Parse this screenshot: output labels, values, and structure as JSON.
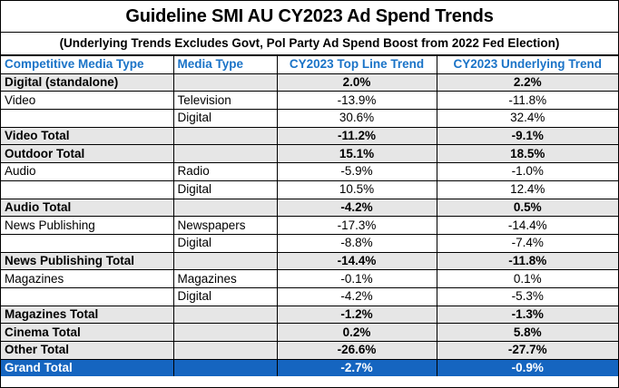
{
  "title": "Guideline SMI AU CY2023 Ad Spend Trends",
  "subtitle": "(Underlying Trends Excludes Govt, Pol Party Ad Spend Boost from 2022 Fed Election)",
  "headers": [
    "Competitive Media Type",
    "Media Type",
    "CY2023 Top Line Trend",
    "CY2023 Underlying Trend"
  ],
  "colors": {
    "header_text": "#1a73c7",
    "shaded_row": "#e6e6e6",
    "grand_total_bg": "#1565c0",
    "grand_total_text": "#ffffff"
  },
  "rows": [
    {
      "kind": "bold",
      "media_group": "Digital (standalone)",
      "media_type": "",
      "top_line": "2.0%",
      "underlying": "2.2%"
    },
    {
      "kind": "plain",
      "media_group": "Video",
      "media_type": "Television",
      "top_line": "-13.9%",
      "underlying": "-11.8%"
    },
    {
      "kind": "plain",
      "media_group": "",
      "media_type": "Digital",
      "top_line": "30.6%",
      "underlying": "32.4%"
    },
    {
      "kind": "total",
      "media_group": "Video Total",
      "media_type": "",
      "top_line": "-11.2%",
      "underlying": "-9.1%"
    },
    {
      "kind": "total",
      "media_group": "Outdoor Total",
      "media_type": "",
      "top_line": "15.1%",
      "underlying": "18.5%"
    },
    {
      "kind": "plain",
      "media_group": "Audio",
      "media_type": "Radio",
      "top_line": "-5.9%",
      "underlying": "-1.0%"
    },
    {
      "kind": "plain",
      "media_group": "",
      "media_type": "Digital",
      "top_line": "10.5%",
      "underlying": "12.4%"
    },
    {
      "kind": "total",
      "media_group": "Audio Total",
      "media_type": "",
      "top_line": "-4.2%",
      "underlying": "0.5%"
    },
    {
      "kind": "plain",
      "media_group": "News Publishing",
      "media_type": "Newspapers",
      "top_line": "-17.3%",
      "underlying": "-14.4%"
    },
    {
      "kind": "plain",
      "media_group": "",
      "media_type": "Digital",
      "top_line": "-8.8%",
      "underlying": "-7.4%"
    },
    {
      "kind": "total",
      "media_group": "News Publishing Total",
      "media_type": "",
      "top_line": "-14.4%",
      "underlying": "-11.8%"
    },
    {
      "kind": "plain",
      "media_group": "Magazines",
      "media_type": "Magazines",
      "top_line": "-0.1%",
      "underlying": "0.1%"
    },
    {
      "kind": "plain",
      "media_group": "",
      "media_type": "Digital",
      "top_line": "-4.2%",
      "underlying": "-5.3%"
    },
    {
      "kind": "total",
      "media_group": "Magazines Total",
      "media_type": "",
      "top_line": "-1.2%",
      "underlying": "-1.3%"
    },
    {
      "kind": "total",
      "media_group": "Cinema Total",
      "media_type": "",
      "top_line": "0.2%",
      "underlying": "5.8%"
    },
    {
      "kind": "total",
      "media_group": "Other Total",
      "media_type": "",
      "top_line": "-26.6%",
      "underlying": "-27.7%"
    },
    {
      "kind": "grand",
      "media_group": "Grand Total",
      "media_type": "",
      "top_line": "-2.7%",
      "underlying": "-0.9%"
    }
  ]
}
